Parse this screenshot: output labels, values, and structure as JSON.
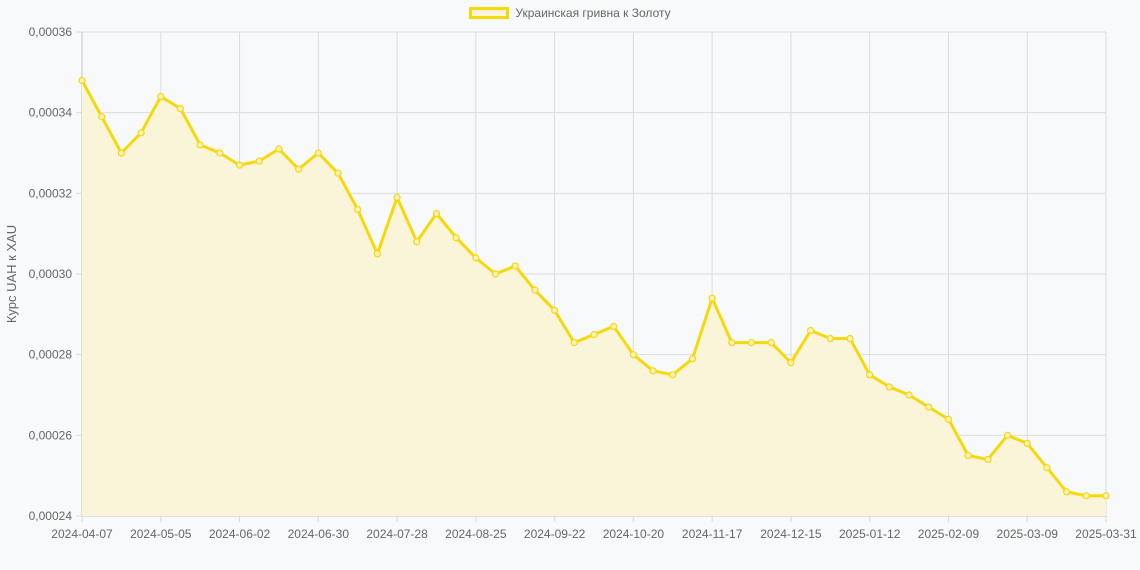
{
  "legend": {
    "label": "Украинская гривна к Золоту",
    "color": "#f5d90a"
  },
  "colors": {
    "line": "#f5d90a",
    "fill": "#faf4d8",
    "grid": "#dcdcdc",
    "background": "#f8f9fa"
  },
  "chart_data": {
    "type": "area",
    "title": "",
    "xlabel": "",
    "ylabel": "Курс UAH к XAU",
    "ylim": [
      0.00024,
      0.00036
    ],
    "y_ticks": [
      "0,00024",
      "0,00026",
      "0,00028",
      "0,00030",
      "0,00032",
      "0,00034",
      "0,00036"
    ],
    "x_ticks": [
      "2024-04-07",
      "2024-05-05",
      "2024-06-02",
      "2024-06-30",
      "2024-07-28",
      "2024-08-25",
      "2024-09-22",
      "2024-10-20",
      "2024-11-17",
      "2024-12-15",
      "2025-01-12",
      "2025-02-09",
      "2025-03-09",
      "2025-03-31"
    ],
    "x_tick_indices": [
      0,
      4,
      8,
      12,
      16,
      20,
      24,
      28,
      32,
      36,
      40,
      44,
      48,
      52
    ],
    "grid": true,
    "legend_position": "top",
    "series": [
      {
        "name": "Украинская гривна к Золоту",
        "values": [
          0.000348,
          0.000339,
          0.00033,
          0.000335,
          0.000344,
          0.000341,
          0.000332,
          0.00033,
          0.000327,
          0.000328,
          0.000331,
          0.000326,
          0.00033,
          0.000325,
          0.000316,
          0.000305,
          0.000319,
          0.000308,
          0.000315,
          0.000309,
          0.000304,
          0.0003,
          0.000302,
          0.000296,
          0.000291,
          0.000283,
          0.000285,
          0.000287,
          0.00028,
          0.000276,
          0.000275,
          0.000279,
          0.000294,
          0.000283,
          0.000283,
          0.000283,
          0.000278,
          0.000286,
          0.000284,
          0.000284,
          0.000275,
          0.000272,
          0.00027,
          0.000267,
          0.000264,
          0.000255,
          0.000254,
          0.00026,
          0.000258,
          0.000252,
          0.000246,
          0.000245,
          0.000245
        ]
      }
    ]
  }
}
